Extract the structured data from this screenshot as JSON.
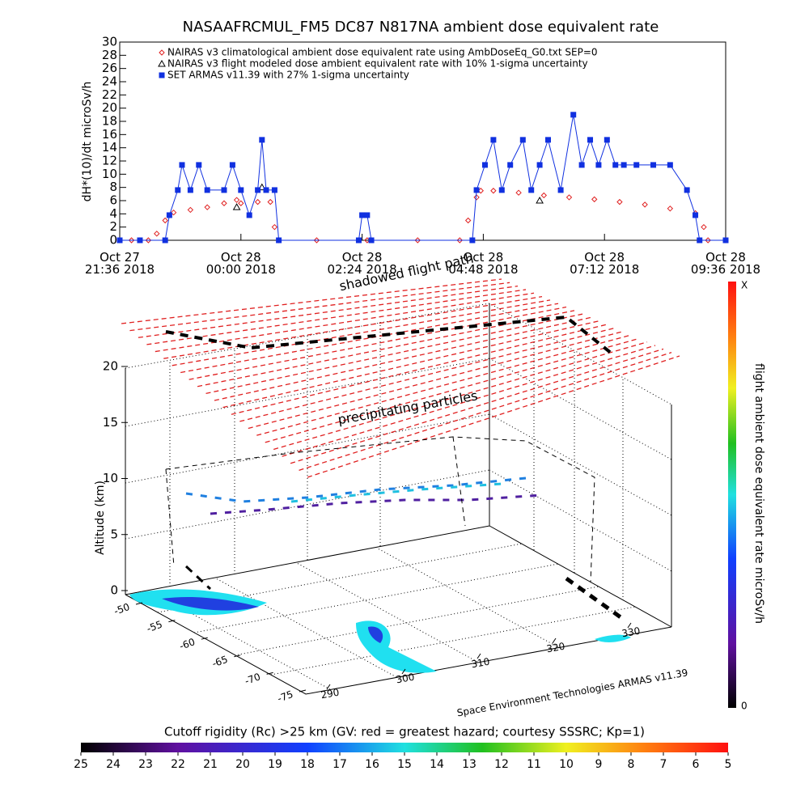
{
  "chart_data": [
    {
      "type": "line",
      "title": "NASAAFRCMUL_FM5 DC87 N817NA ambient dose equivalent rate",
      "y_label": "dH*(10)/dt microSv/h",
      "xlim": [
        "2018-10-27T21:36",
        "2018-10-28T09:36"
      ],
      "xticks": [
        {
          "value": "2018-10-27T21:36",
          "label": "Oct 27\n21:36 2018"
        },
        {
          "value": "2018-10-28T00:00",
          "label": "Oct 28\n00:00 2018"
        },
        {
          "value": "2018-10-28T02:24",
          "label": "Oct 28\n02:24 2018"
        },
        {
          "value": "2018-10-28T04:48",
          "label": "Oct 28\n04:48 2018"
        },
        {
          "value": "2018-10-28T07:12",
          "label": "Oct 28\n07:12 2018"
        },
        {
          "value": "2018-10-28T09:36",
          "label": "Oct 28\n09:36 2018"
        }
      ],
      "ylim": [
        0,
        30
      ],
      "yticks": [
        0,
        2,
        4,
        6,
        8,
        10,
        12,
        14,
        16,
        18,
        20,
        22,
        24,
        26,
        28,
        30
      ],
      "series": [
        {
          "name": "NAIRAS v3 climatological ambient dose equivalent rate using AmbDoseEq_G0.txt SEP=0",
          "color": "#e02020",
          "marker": "diamond",
          "x": [
            "2018-10-27T21:36",
            "2018-10-27T21:50",
            "2018-10-27T22:00",
            "2018-10-27T22:10",
            "2018-10-27T22:20",
            "2018-10-27T22:30",
            "2018-10-27T22:40",
            "2018-10-27T23:00",
            "2018-10-27T23:20",
            "2018-10-27T23:40",
            "2018-10-27T23:55",
            "2018-10-28T00:00",
            "2018-10-28T00:20",
            "2018-10-28T00:35",
            "2018-10-28T00:40",
            "2018-10-28T00:45",
            "2018-10-28T01:30",
            "2018-10-28T02:30",
            "2018-10-28T03:30",
            "2018-10-28T04:20",
            "2018-10-28T04:30",
            "2018-10-28T04:40",
            "2018-10-28T04:45",
            "2018-10-28T05:00",
            "2018-10-28T05:30",
            "2018-10-28T06:00",
            "2018-10-28T06:30",
            "2018-10-28T07:00",
            "2018-10-28T07:30",
            "2018-10-28T08:00",
            "2018-10-28T08:30",
            "2018-10-28T09:00",
            "2018-10-28T09:10",
            "2018-10-28T09:15",
            "2018-10-28T09:36"
          ],
          "values": [
            0,
            0,
            0,
            0,
            1,
            3,
            4.2,
            4.6,
            5.0,
            5.6,
            6.1,
            5.6,
            5.8,
            5.8,
            2,
            0,
            0,
            0,
            0,
            0,
            3,
            6.5,
            7.5,
            7.5,
            7.2,
            6.8,
            6.5,
            6.2,
            5.8,
            5.4,
            4.8,
            4.1,
            2,
            0,
            0
          ]
        },
        {
          "name": "NAIRAS v3 flight modeled dose ambient equivalent rate with 10% 1-sigma uncertainty",
          "color": "#000000",
          "marker": "triangle",
          "x": [
            "2018-10-27T23:55",
            "2018-10-28T00:25",
            "2018-10-28T05:55"
          ],
          "values": [
            5,
            8,
            6
          ]
        },
        {
          "name": "SET ARMAS v11.39 with 27% 1-sigma uncertainty",
          "color": "#1030e0",
          "marker": "square",
          "x": [
            "2018-10-27T21:36",
            "2018-10-27T22:00",
            "2018-10-27T22:30",
            "2018-10-27T22:35",
            "2018-10-27T22:45",
            "2018-10-27T22:50",
            "2018-10-27T23:00",
            "2018-10-27T23:10",
            "2018-10-27T23:20",
            "2018-10-27T23:40",
            "2018-10-27T23:50",
            "2018-10-28T00:00",
            "2018-10-28T00:10",
            "2018-10-28T00:20",
            "2018-10-28T00:25",
            "2018-10-28T00:30",
            "2018-10-28T00:40",
            "2018-10-28T00:45",
            "2018-10-28T02:20",
            "2018-10-28T02:24",
            "2018-10-28T02:30",
            "2018-10-28T02:35",
            "2018-10-28T04:35",
            "2018-10-28T04:40",
            "2018-10-28T04:50",
            "2018-10-28T05:00",
            "2018-10-28T05:10",
            "2018-10-28T05:20",
            "2018-10-28T05:35",
            "2018-10-28T05:45",
            "2018-10-28T05:55",
            "2018-10-28T06:05",
            "2018-10-28T06:20",
            "2018-10-28T06:35",
            "2018-10-28T06:45",
            "2018-10-28T06:55",
            "2018-10-28T07:05",
            "2018-10-28T07:15",
            "2018-10-28T07:25",
            "2018-10-28T07:35",
            "2018-10-28T07:50",
            "2018-10-28T08:10",
            "2018-10-28T08:30",
            "2018-10-28T08:50",
            "2018-10-28T09:00",
            "2018-10-28T09:05",
            "2018-10-28T09:36"
          ],
          "values": [
            0,
            0,
            0,
            3.8,
            7.6,
            11.4,
            7.6,
            11.4,
            7.6,
            7.6,
            11.4,
            7.6,
            3.8,
            7.6,
            15.2,
            7.6,
            7.6,
            0,
            0,
            3.8,
            3.8,
            0,
            0,
            7.6,
            11.4,
            15.2,
            7.6,
            11.4,
            15.2,
            7.6,
            11.4,
            15.2,
            7.6,
            19,
            11.4,
            15.2,
            11.4,
            15.2,
            11.4,
            11.4,
            11.4,
            11.4,
            11.4,
            7.6,
            3.8,
            0,
            0
          ]
        }
      ]
    },
    {
      "type": "surface3d",
      "z_label": "Altitude (km)",
      "zlim": [
        0,
        20
      ],
      "zticks": [
        0,
        5,
        10,
        15,
        20
      ],
      "latlim": [
        -50,
        -75
      ],
      "latticks": [
        -50,
        -55,
        -60,
        -65,
        -70,
        -75
      ],
      "lonlim": [
        290,
        330
      ],
      "lonticks": [
        290,
        300,
        310,
        320,
        330
      ],
      "annotations": [
        "shadowed flight path",
        "precipitating particles",
        "Space Environment Technologies ARMAS v11.39"
      ],
      "colorbar": {
        "label": "flight ambient dose equivalent rate microSv/h",
        "min_label": "0",
        "max_label": "X"
      }
    },
    {
      "type": "colorbar",
      "title": "Cutoff rigidity (Rc) >25 km (GV: red = greatest hazard; courtesy SSSRC; Kp=1)",
      "xlim": [
        25,
        5
      ],
      "xticks": [
        25,
        24,
        23,
        22,
        21,
        20,
        19,
        18,
        17,
        16,
        15,
        14,
        13,
        12,
        11,
        10,
        9,
        8,
        7,
        6,
        5
      ]
    }
  ]
}
